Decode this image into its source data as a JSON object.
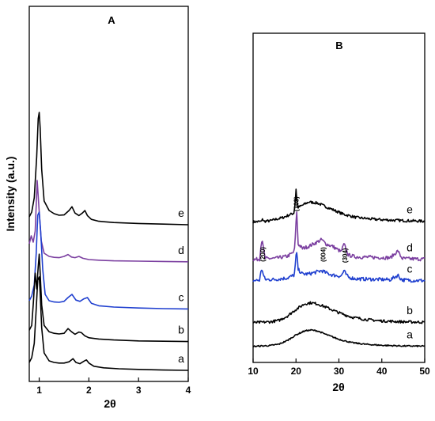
{
  "chart_data": [
    {
      "type": "line",
      "panel_label": "A",
      "xlabel": "2θ",
      "ylabel": "Intensity (a.u.)",
      "xlim": [
        0.8,
        4
      ],
      "x_ticks": [
        1,
        2,
        3,
        4
      ],
      "grid": false,
      "legend": "none",
      "series": [
        {
          "name": "e",
          "color": "#000000",
          "offset": 4.6,
          "x": [
            0.8,
            0.85,
            0.9,
            0.95,
            0.98,
            1.0,
            1.02,
            1.05,
            1.1,
            1.2,
            1.3,
            1.4,
            1.5,
            1.6,
            1.66,
            1.72,
            1.8,
            1.87,
            1.92,
            1.97,
            2.05,
            2.2,
            2.5,
            3.0,
            3.5,
            4.0
          ],
          "y": [
            0.3,
            0.45,
            0.9,
            2.2,
            3.4,
            3.6,
            3.1,
            1.8,
            0.8,
            0.5,
            0.4,
            0.35,
            0.36,
            0.5,
            0.62,
            0.42,
            0.34,
            0.42,
            0.5,
            0.34,
            0.22,
            0.16,
            0.12,
            0.09,
            0.07,
            0.05
          ]
        },
        {
          "name": "d",
          "color": "#7b3fa0",
          "offset": 3.45,
          "x": [
            0.8,
            0.84,
            0.88,
            0.92,
            0.96,
            1.0,
            1.04,
            1.1,
            1.2,
            1.3,
            1.4,
            1.5,
            1.58,
            1.65,
            1.72,
            1.8,
            1.88,
            2.0,
            2.2,
            2.5,
            3.0,
            3.5,
            4.0
          ],
          "y": [
            0.6,
            0.85,
            0.65,
            1.0,
            2.6,
            1.6,
            0.7,
            0.3,
            0.2,
            0.17,
            0.16,
            0.2,
            0.26,
            0.18,
            0.16,
            0.2,
            0.14,
            0.1,
            0.08,
            0.06,
            0.05,
            0.04,
            0.03
          ]
        },
        {
          "name": "c",
          "color": "#1f3fcf",
          "offset": 1.95,
          "x": [
            0.8,
            0.85,
            0.9,
            0.94,
            0.97,
            1.0,
            1.03,
            1.07,
            1.12,
            1.2,
            1.3,
            1.4,
            1.5,
            1.58,
            1.66,
            1.74,
            1.82,
            1.9,
            1.97,
            2.05,
            2.2,
            2.5,
            3.0,
            3.5,
            4.0
          ],
          "y": [
            0.3,
            0.45,
            0.8,
            1.8,
            3.0,
            3.1,
            2.5,
            1.3,
            0.5,
            0.3,
            0.26,
            0.25,
            0.28,
            0.4,
            0.5,
            0.32,
            0.28,
            0.36,
            0.4,
            0.22,
            0.14,
            0.1,
            0.07,
            0.05,
            0.04
          ]
        },
        {
          "name": "b",
          "color": "#000000",
          "offset": 0.92,
          "x": [
            0.8,
            0.85,
            0.88,
            0.92,
            0.95,
            0.98,
            1.0,
            1.02,
            1.05,
            1.1,
            1.2,
            1.3,
            1.4,
            1.5,
            1.58,
            1.65,
            1.72,
            1.8,
            1.85,
            1.92,
            2.0,
            2.2,
            2.5,
            3.0,
            3.5,
            4.0
          ],
          "y": [
            0.4,
            0.55,
            1.2,
            2.2,
            1.7,
            2.4,
            2.8,
            2.2,
            1.2,
            0.55,
            0.35,
            0.3,
            0.28,
            0.3,
            0.45,
            0.35,
            0.27,
            0.34,
            0.32,
            0.22,
            0.16,
            0.12,
            0.09,
            0.06,
            0.05,
            0.04
          ]
        },
        {
          "name": "a",
          "color": "#000000",
          "offset": 0.0,
          "x": [
            0.8,
            0.85,
            0.9,
            0.94,
            0.97,
            1.0,
            1.02,
            1.05,
            1.1,
            1.2,
            1.3,
            1.4,
            1.5,
            1.6,
            1.68,
            1.74,
            1.82,
            1.9,
            1.95,
            2.0,
            2.1,
            2.3,
            2.6,
            3.0,
            3.5,
            4.0
          ],
          "y": [
            0.3,
            0.45,
            0.9,
            2.0,
            2.9,
            3.0,
            2.5,
            1.4,
            0.6,
            0.35,
            0.3,
            0.28,
            0.28,
            0.32,
            0.42,
            0.3,
            0.26,
            0.34,
            0.38,
            0.28,
            0.18,
            0.13,
            0.1,
            0.08,
            0.06,
            0.05
          ]
        }
      ]
    },
    {
      "type": "line",
      "panel_label": "B",
      "xlabel": "2θ",
      "ylabel": "",
      "xlim": [
        10,
        50
      ],
      "x_ticks": [
        10,
        20,
        30,
        40,
        50
      ],
      "grid": false,
      "legend": "none",
      "series": [
        {
          "name": "e",
          "color": "#000000",
          "offset": 5.6,
          "noise": 0.06,
          "x": [
            10,
            12,
            12.2,
            12.4,
            14,
            17,
            19.5,
            19.8,
            20.0,
            20.3,
            21,
            23,
            25,
            28,
            31,
            34,
            38,
            42,
            46,
            50
          ],
          "y": [
            0.1,
            0.12,
            0.3,
            0.12,
            0.15,
            0.3,
            0.5,
            0.9,
            1.6,
            0.75,
            0.8,
            1.0,
            0.95,
            0.7,
            0.45,
            0.3,
            0.22,
            0.18,
            0.15,
            0.13
          ]
        },
        {
          "name": "d",
          "color": "#7b3fa0",
          "offset": 3.9,
          "noise": 0.08,
          "x": [
            10,
            11.5,
            11.9,
            12.1,
            12.3,
            12.8,
            15,
            18,
            19.6,
            19.9,
            20.1,
            20.5,
            21.5,
            23,
            25,
            26,
            27,
            28.5,
            30.5,
            31.2,
            31.6,
            32.2,
            34,
            38,
            42,
            43.8,
            44.2,
            44.8,
            47,
            50
          ],
          "y": [
            0.1,
            0.12,
            0.8,
            1.1,
            0.7,
            0.15,
            0.15,
            0.25,
            0.45,
            1.2,
            2.5,
            0.8,
            0.6,
            0.7,
            0.9,
            1.0,
            0.8,
            0.7,
            0.45,
            0.8,
            0.6,
            0.3,
            0.22,
            0.2,
            0.18,
            0.5,
            0.3,
            0.15,
            0.13,
            0.12
          ]
        },
        {
          "name": "c",
          "color": "#1f3fcf",
          "offset": 2.95,
          "noise": 0.08,
          "x": [
            10,
            11.5,
            11.9,
            12.1,
            12.3,
            12.8,
            15,
            18,
            19.6,
            19.9,
            20.1,
            20.5,
            21.5,
            23,
            25,
            26,
            27,
            28.5,
            30.5,
            31.2,
            31.6,
            32.2,
            34,
            38,
            42,
            43.8,
            44.2,
            44.8,
            47,
            50
          ],
          "y": [
            0.1,
            0.12,
            0.55,
            0.65,
            0.4,
            0.15,
            0.15,
            0.22,
            0.35,
            0.9,
            1.5,
            0.6,
            0.4,
            0.4,
            0.5,
            0.55,
            0.45,
            0.35,
            0.3,
            0.55,
            0.4,
            0.25,
            0.18,
            0.16,
            0.14,
            0.35,
            0.22,
            0.13,
            0.11,
            0.1
          ]
        },
        {
          "name": "b",
          "color": "#000000",
          "offset": 1.05,
          "noise": 0.06,
          "x": [
            10,
            12,
            14,
            16,
            18,
            20,
            22,
            23.5,
            25,
            27,
            30,
            33,
            36,
            40,
            45,
            50
          ],
          "y": [
            0.1,
            0.12,
            0.14,
            0.2,
            0.4,
            0.7,
            0.95,
            1.0,
            0.95,
            0.8,
            0.55,
            0.35,
            0.25,
            0.18,
            0.14,
            0.12
          ]
        },
        {
          "name": "a",
          "color": "#000000",
          "offset": 0.0,
          "noise": 0.03,
          "x": [
            10,
            12,
            14,
            16,
            18,
            20,
            22,
            23.5,
            25,
            27,
            30,
            33,
            36,
            40,
            45,
            50
          ],
          "y": [
            0.08,
            0.1,
            0.12,
            0.18,
            0.35,
            0.6,
            0.78,
            0.82,
            0.78,
            0.62,
            0.4,
            0.25,
            0.18,
            0.13,
            0.1,
            0.09
          ]
        }
      ],
      "annotations": [
        {
          "text": "(200)",
          "x": 12.2,
          "series": "c"
        },
        {
          "text": "(103)",
          "x": 20.0,
          "series": "d"
        },
        {
          "text": "(004)",
          "x": 26.3,
          "series": "c"
        },
        {
          "text": "(304)",
          "x": 31.4,
          "series": "c"
        }
      ]
    }
  ]
}
